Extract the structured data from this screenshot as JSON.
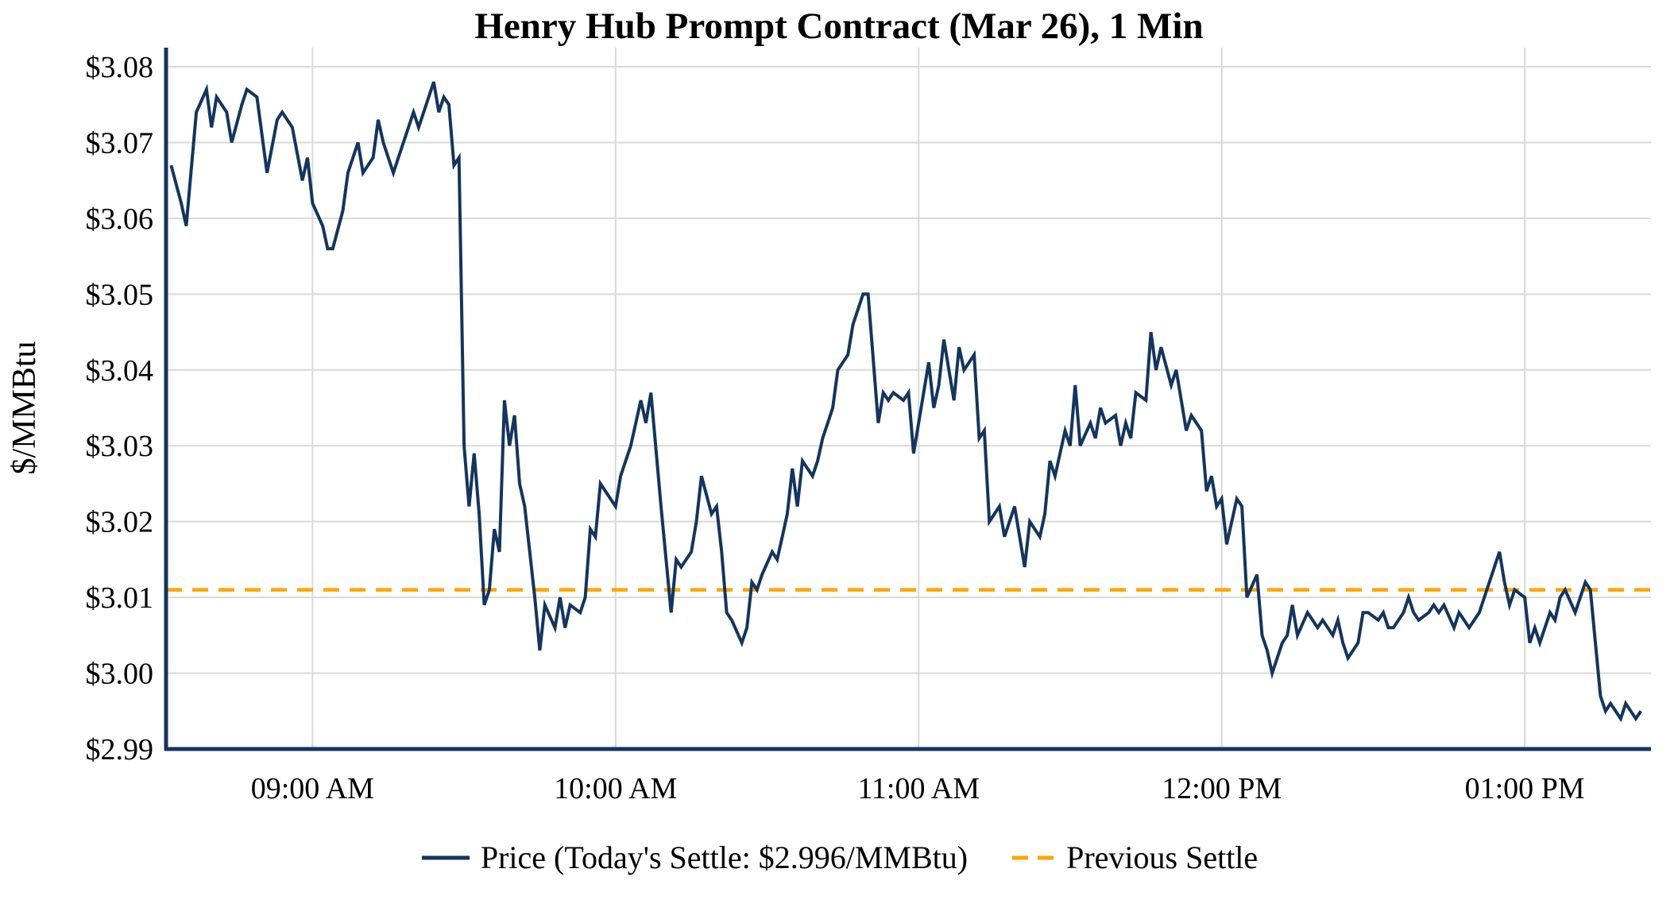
{
  "title": "Henry Hub Prompt Contract (Mar 26), 1 Min",
  "y_axis_label": "$/MMBtu",
  "legend": {
    "price_label": "Price (Today's Settle: $2.996/MMBtu)",
    "previous_settle_label": "Previous Settle"
  },
  "colors": {
    "price_line": "#14355c",
    "previous_settle": "#FFA500",
    "grid": "#d9d9d9",
    "spine": "#14355c",
    "text": "#000000",
    "background": "#ffffff"
  },
  "chart_data": {
    "type": "line",
    "title": "Henry Hub Prompt Contract (Mar 26), 1 Min",
    "xlabel": "",
    "ylabel": "$/MMBtu",
    "ylim": [
      2.99,
      3.08
    ],
    "y_ticks": [
      2.99,
      3.0,
      3.01,
      3.02,
      3.03,
      3.04,
      3.05,
      3.06,
      3.07,
      3.08
    ],
    "y_tick_labels": [
      "$2.99",
      "$3.00",
      "$3.01",
      "$3.02",
      "$3.03",
      "$3.04",
      "$3.05",
      "$3.06",
      "$3.07",
      "$3.08"
    ],
    "x_range_minutes": [
      511,
      805
    ],
    "x_tick_minutes": [
      540,
      600,
      660,
      720,
      780
    ],
    "x_tick_labels": [
      "09:00 AM",
      "10:00 AM",
      "11:00 AM",
      "12:00 PM",
      "01:00 PM"
    ],
    "grid": true,
    "legend_position": "bottom",
    "previous_settle_value": 3.011,
    "todays_settle_value": 2.996,
    "series": [
      {
        "name": "Price",
        "points": [
          [
            512,
            3.067
          ],
          [
            514,
            3.062
          ],
          [
            515,
            3.059
          ],
          [
            517,
            3.074
          ],
          [
            519,
            3.077
          ],
          [
            520,
            3.072
          ],
          [
            521,
            3.076
          ],
          [
            523,
            3.074
          ],
          [
            524,
            3.07
          ],
          [
            526,
            3.075
          ],
          [
            527,
            3.077
          ],
          [
            529,
            3.076
          ],
          [
            531,
            3.066
          ],
          [
            533,
            3.073
          ],
          [
            534,
            3.074
          ],
          [
            536,
            3.072
          ],
          [
            538,
            3.065
          ],
          [
            539,
            3.068
          ],
          [
            540,
            3.062
          ],
          [
            542,
            3.059
          ],
          [
            543,
            3.056
          ],
          [
            544,
            3.056
          ],
          [
            546,
            3.061
          ],
          [
            547,
            3.066
          ],
          [
            549,
            3.07
          ],
          [
            550,
            3.066
          ],
          [
            552,
            3.068
          ],
          [
            553,
            3.073
          ],
          [
            554,
            3.07
          ],
          [
            556,
            3.066
          ],
          [
            557,
            3.068
          ],
          [
            559,
            3.072
          ],
          [
            560,
            3.074
          ],
          [
            561,
            3.072
          ],
          [
            563,
            3.076
          ],
          [
            564,
            3.078
          ],
          [
            565,
            3.074
          ],
          [
            566,
            3.076
          ],
          [
            567,
            3.075
          ],
          [
            568,
            3.067
          ],
          [
            569,
            3.068
          ],
          [
            570,
            3.03
          ],
          [
            571,
            3.022
          ],
          [
            572,
            3.029
          ],
          [
            573,
            3.021
          ],
          [
            574,
            3.009
          ],
          [
            575,
            3.011
          ],
          [
            576,
            3.019
          ],
          [
            577,
            3.016
          ],
          [
            578,
            3.036
          ],
          [
            579,
            3.03
          ],
          [
            580,
            3.034
          ],
          [
            581,
            3.025
          ],
          [
            582,
            3.022
          ],
          [
            584,
            3.01
          ],
          [
            585,
            3.003
          ],
          [
            586,
            3.009
          ],
          [
            588,
            3.006
          ],
          [
            589,
            3.01
          ],
          [
            590,
            3.006
          ],
          [
            591,
            3.009
          ],
          [
            593,
            3.008
          ],
          [
            594,
            3.01
          ],
          [
            595,
            3.019
          ],
          [
            596,
            3.018
          ],
          [
            597,
            3.025
          ],
          [
            599,
            3.023
          ],
          [
            600,
            3.022
          ],
          [
            601,
            3.026
          ],
          [
            603,
            3.03
          ],
          [
            605,
            3.036
          ],
          [
            606,
            3.033
          ],
          [
            607,
            3.037
          ],
          [
            609,
            3.022
          ],
          [
            611,
            3.008
          ],
          [
            612,
            3.015
          ],
          [
            613,
            3.014
          ],
          [
            615,
            3.016
          ],
          [
            616,
            3.02
          ],
          [
            617,
            3.026
          ],
          [
            619,
            3.021
          ],
          [
            620,
            3.022
          ],
          [
            621,
            3.016
          ],
          [
            622,
            3.008
          ],
          [
            623,
            3.007
          ],
          [
            625,
            3.004
          ],
          [
            626,
            3.006
          ],
          [
            627,
            3.012
          ],
          [
            628,
            3.011
          ],
          [
            629,
            3.013
          ],
          [
            631,
            3.016
          ],
          [
            632,
            3.015
          ],
          [
            633,
            3.018
          ],
          [
            634,
            3.021
          ],
          [
            635,
            3.027
          ],
          [
            636,
            3.022
          ],
          [
            637,
            3.028
          ],
          [
            639,
            3.026
          ],
          [
            640,
            3.028
          ],
          [
            641,
            3.031
          ],
          [
            642,
            3.033
          ],
          [
            643,
            3.035
          ],
          [
            644,
            3.04
          ],
          [
            646,
            3.042
          ],
          [
            647,
            3.046
          ],
          [
            649,
            3.05
          ],
          [
            650,
            3.05
          ],
          [
            652,
            3.033
          ],
          [
            653,
            3.037
          ],
          [
            654,
            3.036
          ],
          [
            655,
            3.037
          ],
          [
            657,
            3.036
          ],
          [
            658,
            3.037
          ],
          [
            659,
            3.029
          ],
          [
            660,
            3.033
          ],
          [
            662,
            3.041
          ],
          [
            663,
            3.035
          ],
          [
            664,
            3.038
          ],
          [
            665,
            3.044
          ],
          [
            667,
            3.036
          ],
          [
            668,
            3.043
          ],
          [
            669,
            3.04
          ],
          [
            671,
            3.042
          ],
          [
            672,
            3.031
          ],
          [
            673,
            3.032
          ],
          [
            674,
            3.02
          ],
          [
            676,
            3.022
          ],
          [
            677,
            3.018
          ],
          [
            678,
            3.02
          ],
          [
            679,
            3.022
          ],
          [
            681,
            3.014
          ],
          [
            682,
            3.02
          ],
          [
            684,
            3.018
          ],
          [
            685,
            3.021
          ],
          [
            686,
            3.028
          ],
          [
            687,
            3.026
          ],
          [
            689,
            3.032
          ],
          [
            690,
            3.03
          ],
          [
            691,
            3.038
          ],
          [
            692,
            3.03
          ],
          [
            694,
            3.033
          ],
          [
            695,
            3.031
          ],
          [
            696,
            3.035
          ],
          [
            697,
            3.033
          ],
          [
            699,
            3.034
          ],
          [
            700,
            3.03
          ],
          [
            701,
            3.033
          ],
          [
            702,
            3.031
          ],
          [
            703,
            3.037
          ],
          [
            705,
            3.036
          ],
          [
            706,
            3.045
          ],
          [
            707,
            3.04
          ],
          [
            708,
            3.043
          ],
          [
            710,
            3.038
          ],
          [
            711,
            3.04
          ],
          [
            712,
            3.036
          ],
          [
            713,
            3.032
          ],
          [
            714,
            3.034
          ],
          [
            716,
            3.032
          ],
          [
            717,
            3.024
          ],
          [
            718,
            3.026
          ],
          [
            719,
            3.022
          ],
          [
            720,
            3.023
          ],
          [
            721,
            3.017
          ],
          [
            723,
            3.023
          ],
          [
            724,
            3.022
          ],
          [
            725,
            3.01
          ],
          [
            727,
            3.013
          ],
          [
            728,
            3.005
          ],
          [
            729,
            3.003
          ],
          [
            730,
            3.0
          ],
          [
            732,
            3.004
          ],
          [
            733,
            3.005
          ],
          [
            734,
            3.009
          ],
          [
            735,
            3.005
          ],
          [
            737,
            3.008
          ],
          [
            738,
            3.007
          ],
          [
            739,
            3.006
          ],
          [
            740,
            3.007
          ],
          [
            742,
            3.005
          ],
          [
            743,
            3.007
          ],
          [
            744,
            3.004
          ],
          [
            745,
            3.002
          ],
          [
            747,
            3.004
          ],
          [
            748,
            3.008
          ],
          [
            749,
            3.008
          ],
          [
            751,
            3.007
          ],
          [
            752,
            3.008
          ],
          [
            753,
            3.006
          ],
          [
            754,
            3.006
          ],
          [
            756,
            3.008
          ],
          [
            757,
            3.01
          ],
          [
            758,
            3.008
          ],
          [
            759,
            3.007
          ],
          [
            761,
            3.008
          ],
          [
            762,
            3.009
          ],
          [
            763,
            3.008
          ],
          [
            764,
            3.009
          ],
          [
            766,
            3.006
          ],
          [
            767,
            3.008
          ],
          [
            768,
            3.007
          ],
          [
            769,
            3.006
          ],
          [
            771,
            3.008
          ],
          [
            772,
            3.01
          ],
          [
            773,
            3.012
          ],
          [
            775,
            3.016
          ],
          [
            776,
            3.012
          ],
          [
            777,
            3.009
          ],
          [
            778,
            3.011
          ],
          [
            780,
            3.01
          ],
          [
            781,
            3.004
          ],
          [
            782,
            3.006
          ],
          [
            783,
            3.004
          ],
          [
            785,
            3.008
          ],
          [
            786,
            3.007
          ],
          [
            787,
            3.01
          ],
          [
            788,
            3.011
          ],
          [
            790,
            3.008
          ],
          [
            791,
            3.01
          ],
          [
            792,
            3.012
          ],
          [
            793,
            3.011
          ],
          [
            795,
            2.997
          ],
          [
            796,
            2.995
          ],
          [
            797,
            2.996
          ],
          [
            799,
            2.994
          ],
          [
            800,
            2.996
          ],
          [
            801,
            2.995
          ],
          [
            802,
            2.994
          ],
          [
            803,
            2.995
          ]
        ]
      }
    ]
  }
}
